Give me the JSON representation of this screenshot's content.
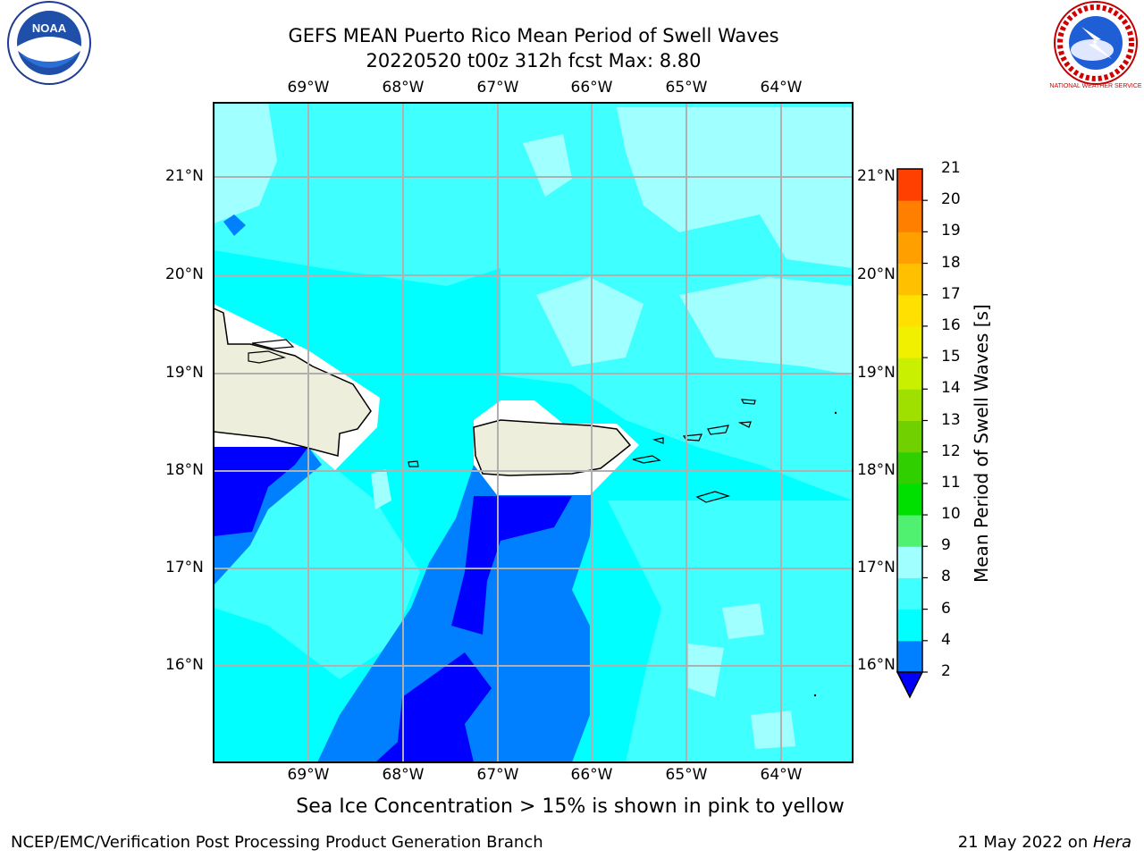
{
  "header": {
    "title_line1": "GEFS MEAN Puerto Rico Mean Period of Swell Waves",
    "title_line2": "20220520 t00z 312h fcst   Max: 8.80"
  },
  "logos": {
    "left": "NOAA",
    "right": "NATIONAL WEATHER SERVICE"
  },
  "map": {
    "lon_labels": [
      "69°W",
      "68°W",
      "67°W",
      "66°W",
      "65°W",
      "64°W"
    ],
    "lat_labels": [
      "21°N",
      "20°N",
      "19°N",
      "18°N",
      "17°N",
      "16°N"
    ],
    "colors": {
      "band_2_4": "#0000ff",
      "band_4_6": "#0080ff",
      "band_6_8": "#00ffff",
      "band_8_9": "#40ffff",
      "band_9_10": "#a0ffff",
      "land": "#eeeedd",
      "no_data": "#ffffff"
    }
  },
  "colorbar": {
    "title": "Mean Period of Swell Waves [s]",
    "ticks": [
      "2",
      "4",
      "6",
      "8",
      "9",
      "10",
      "11",
      "12",
      "13",
      "14",
      "15",
      "16",
      "17",
      "18",
      "19",
      "20",
      "21"
    ],
    "colors": [
      "#0080ff",
      "#00ffff",
      "#40ffff",
      "#a0ffff",
      "#50f070",
      "#00e000",
      "#30d000",
      "#70d000",
      "#a0e000",
      "#c8f000",
      "#f0f000",
      "#ffe000",
      "#ffc000",
      "#ffa000",
      "#ff8000",
      "#ff4000",
      "#ff0000"
    ],
    "extend_color": "#0000ff"
  },
  "notes": {
    "sea_ice": "Sea Ice Concentration > 15% is shown in pink to yellow"
  },
  "footer": {
    "left": "NCEP/EMC/Verification Post Processing Product Generation Branch",
    "date": "21 May 2022 on ",
    "machine": "Hera"
  }
}
